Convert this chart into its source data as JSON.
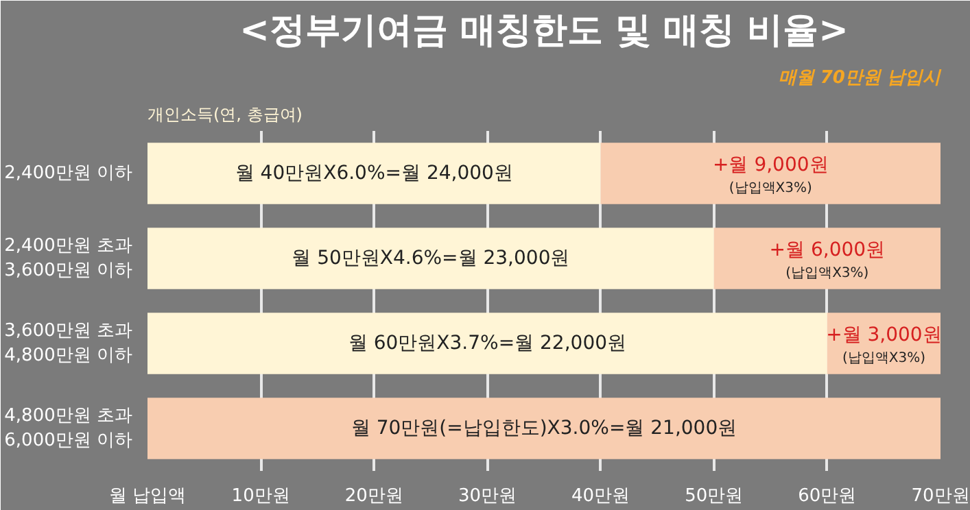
{
  "chart_data": {
    "type": "bar",
    "orientation": "horizontal",
    "stacked": true,
    "title": "<정부기여금 매칭한도 및 매칭 비율>",
    "subtitle": "매월 70만원 납입시",
    "ylabel": "개인소득(연, 총급여)",
    "categories": [
      "2,400만원 이하",
      "2,400만원 초과\n3,600만원 이하",
      "3,600만원 초과\n4,800만원 이하",
      "4,800만원 초과\n6,000만원 이하"
    ],
    "series": [
      {
        "colors": [
          "#fff5d6",
          "#fff5d6",
          "#fff5d6",
          "#f8cdb0"
        ],
        "values": [
          40,
          50,
          60,
          70
        ]
      },
      {
        "color": "#f8cdb0",
        "values": [
          30,
          20,
          10,
          null
        ]
      }
    ],
    "annotations": [
      {
        "text": "월 40만원X6.0%=월 24,000원",
        "x": 20,
        "y": "2,400만원 이하"
      },
      {
        "text": "월 50만원X4.6%=월 23,000원",
        "x": 25,
        "y": "2,400만원 초과\n3,600만원 이하"
      },
      {
        "text": "월 60만원X3.7%=월 22,000원",
        "x": 30,
        "y": "3,600만원 초과\n4,800만원 이하"
      },
      {
        "text": "월 70만원(=납입한도)X3.0%=월 21,000원",
        "x": 35,
        "y": "4,800만원 초과\n6,000만원 이하"
      },
      {
        "text": "+월 9,000원\n(납입액X3%)",
        "x": 55,
        "y": "2,400만원 이하"
      },
      {
        "text": "+월 6,000원\n(납입액X3%)",
        "x": 60,
        "y": "2,400만원 초과\n3,600만원 이하"
      },
      {
        "text": "+월 3,000원\n(납입액X3%)",
        "x": 65,
        "y": "3,600만원 초과\n4,800만원 이하"
      }
    ],
    "xlim": [
      0,
      70
    ],
    "xticks": [
      {
        "value": 0,
        "label": "월 납입액"
      },
      {
        "value": 10,
        "label": "10만원"
      },
      {
        "value": 20,
        "label": "20만원"
      },
      {
        "value": 30,
        "label": "30만원"
      },
      {
        "value": 40,
        "label": "40만원"
      },
      {
        "value": 50,
        "label": "50만원"
      },
      {
        "value": 60,
        "label": "60만원"
      },
      {
        "value": 70,
        "label": "70만원"
      }
    ],
    "grid": "x"
  }
}
